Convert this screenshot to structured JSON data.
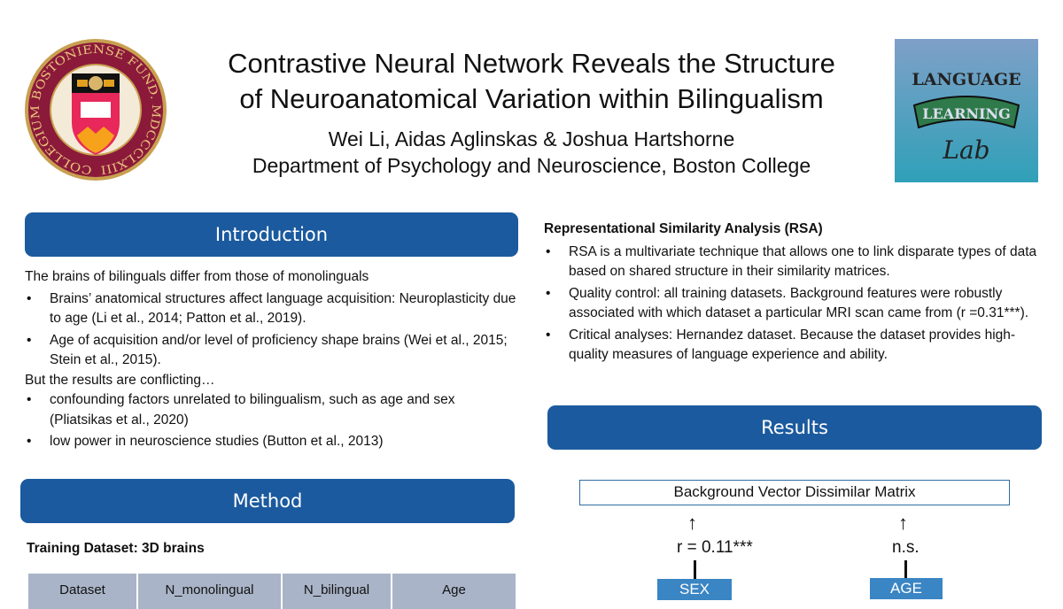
{
  "header": {
    "title_line1": "Contrastive Neural Network Reveals the Structure",
    "title_line2": "of Neuroanatomical Variation within Bilingualism",
    "authors": "Wei Li, Aidas Aglinskas & Joshua Hartshorne",
    "affiliation": "Department of Psychology and Neuroscience, Boston College",
    "left_logo_text": "COLLEGIUM BOSTONIENSE FUND. MDCCCLXIII",
    "right_logo_text": "Language Learning Lab"
  },
  "introduction": {
    "heading": "Introduction",
    "lead": "The brains of bilinguals differ from those of monolinguals",
    "bullets1": [
      "Brains’ anatomical structures affect language acquisition: Neuroplasticity due to age (Li et al., 2014; Patton et al., 2019).",
      "Age of acquisition and/or level of proficiency shape brains (Wei et al., 2015; Stein et al., 2015)."
    ],
    "lead2": "But the results are conflicting…",
    "bullets2": [
      "confounding factors unrelated to bilingualism, such as age and sex (Pliatsikas et al., 2020)",
      "low power in neuroscience studies (Button et al., 2013)"
    ]
  },
  "method": {
    "heading": "Method",
    "subheading": "Training Dataset: 3D brains",
    "table_headers": [
      "Dataset",
      "N_monolingual",
      "N_bilingual",
      "Age"
    ]
  },
  "rsa": {
    "heading": "Representational Similarity Analysis (RSA)",
    "bullets": [
      "RSA is a multivariate technique that allows one to link disparate types of data based on shared structure in their similarity matrices.",
      "Quality control: all training datasets. Background features were robustly associated with which dataset a particular MRI scan came from (r =0.31***).",
      "Critical analyses: Hernandez dataset. Because the dataset provides high-quality measures of language experience and ability."
    ]
  },
  "results": {
    "heading": "Results",
    "matrix_label": "Background Vector Dissimilar Matrix",
    "sex_stat": "r = 0.11***",
    "age_stat": "n.s.",
    "sex_label": "SEX",
    "age_label": "AGE"
  },
  "colors": {
    "header_blue": "#1b5a9e",
    "table_header": "#a9b4c8",
    "variable_box": "#3a85c3"
  }
}
